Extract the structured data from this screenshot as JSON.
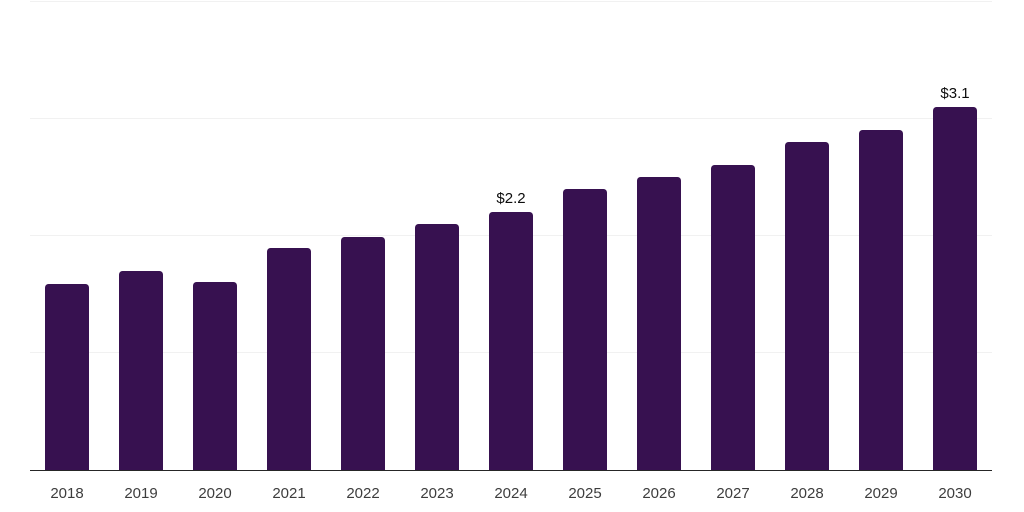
{
  "chart_data": {
    "type": "bar",
    "title": "",
    "categories": [
      "2018",
      "2019",
      "2020",
      "2021",
      "2022",
      "2023",
      "2024",
      "2025",
      "2026",
      "2027",
      "2028",
      "2029",
      "2030"
    ],
    "values": [
      1.59,
      1.7,
      1.6,
      1.89,
      1.99,
      2.1,
      2.2,
      2.4,
      2.5,
      2.6,
      2.8,
      2.9,
      3.1
    ],
    "data_labels": {
      "2024": "$2.2",
      "2030": "$3.1"
    },
    "xlabel": "",
    "ylabel": "",
    "ylim": [
      0,
      4
    ],
    "y_gridlines": [
      1,
      2,
      3,
      4
    ],
    "grid": true,
    "legend": "none",
    "colors": {
      "bar": "#371150",
      "axis": "#262626",
      "gridline": "#f1f1f1",
      "tick_label": "#3d3d3d",
      "value_label": "#0d0d0d",
      "background": "#ffffff"
    }
  }
}
